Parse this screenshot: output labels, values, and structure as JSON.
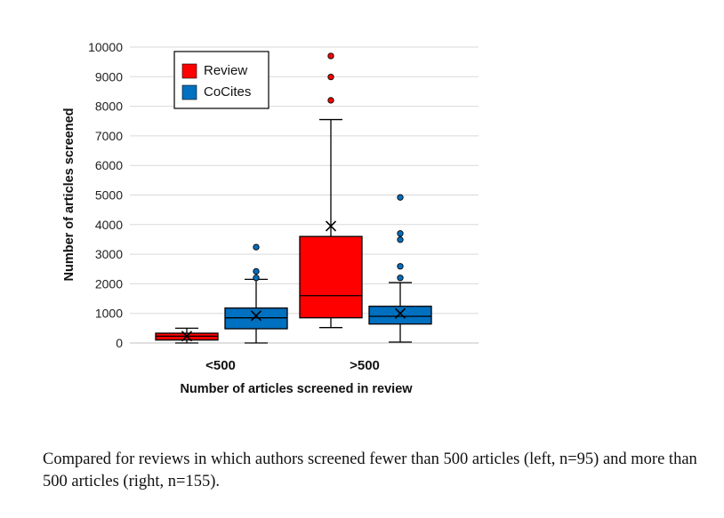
{
  "chart_data": {
    "type": "box",
    "title": "",
    "xlabel": "Number of articles screened in review",
    "ylabel": "Number of articles screened",
    "ylim": [
      0,
      10000
    ],
    "yticks": [
      0,
      1000,
      2000,
      3000,
      4000,
      5000,
      6000,
      7000,
      8000,
      9000,
      10000
    ],
    "grid": true,
    "legend_position": "top-left",
    "categories": [
      "<500",
      ">500"
    ],
    "series": [
      {
        "name": "Review",
        "color": "#ff0000",
        "boxes": [
          {
            "category": "<500",
            "min": 0,
            "q1": 100,
            "median": 230,
            "q3": 330,
            "max": 500,
            "mean": 230,
            "outliers": []
          },
          {
            "category": ">500",
            "min": 520,
            "q1": 850,
            "median": 1600,
            "q3": 3600,
            "max": 7550,
            "mean": 3950,
            "outliers": [
              8200,
              8990,
              9700
            ]
          }
        ]
      },
      {
        "name": "CoCites",
        "color": "#0070c0",
        "boxes": [
          {
            "category": "<500",
            "min": 0,
            "q1": 480,
            "median": 850,
            "q3": 1180,
            "max": 2150,
            "mean": 920,
            "outliers": [
              2200,
              2420,
              3240
            ]
          },
          {
            "category": ">500",
            "min": 30,
            "q1": 640,
            "median": 900,
            "q3": 1240,
            "max": 2040,
            "mean": 1000,
            "outliers": [
              2200,
              2590,
              3490,
              3700,
              4920
            ]
          }
        ]
      }
    ]
  },
  "caption": "Compared for reviews in which authors screened fewer than 500 articles (left, n=95) and more than 500 articles (right, n=155)."
}
